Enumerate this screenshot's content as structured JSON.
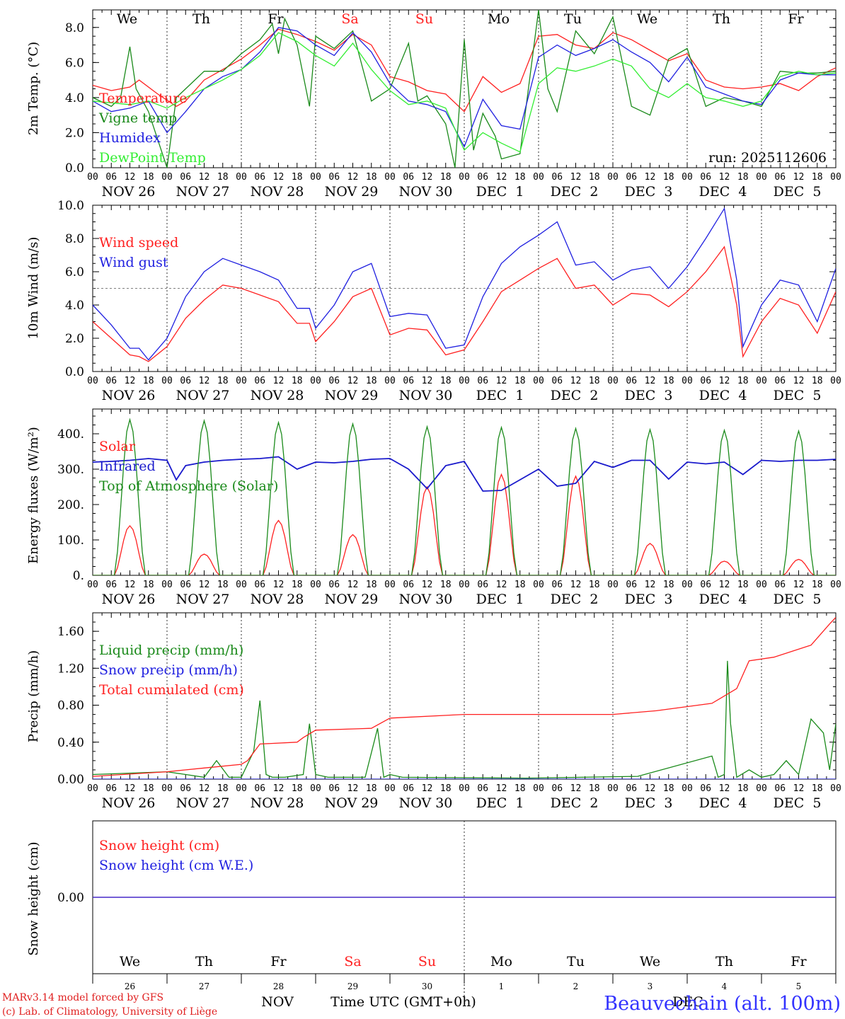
{
  "colors": {
    "red": "#ff2020",
    "green": "#1a8a1a",
    "blue": "#2020e0",
    "lightgreen": "#33ee33",
    "navy": "#1a1acc",
    "axis": "#000000"
  },
  "days": {
    "weekdays": [
      "We",
      "Th",
      "Fr",
      "Sa",
      "Su",
      "Mo",
      "Tu",
      "We",
      "Th",
      "Fr"
    ],
    "weekday_colors": [
      "#000",
      "#000",
      "#000",
      "#ff2020",
      "#ff2020",
      "#000",
      "#000",
      "#000",
      "#000",
      "#000"
    ],
    "date_labels": [
      "NOV 26",
      "NOV 27",
      "NOV 28",
      "NOV 29",
      "NOV 30",
      "DEC  1",
      "DEC  2",
      "DEC  3",
      "DEC  4",
      "DEC  5"
    ],
    "day_numbers": [
      "26",
      "27",
      "28",
      "29",
      "30",
      "1",
      "2",
      "3",
      "4",
      "5"
    ],
    "hour_ticks": [
      "00",
      "06",
      "12",
      "18"
    ],
    "end_tick": "00"
  },
  "footer": {
    "model_line": "MARv3.14 model forced by GFS",
    "lab_line": "(c) Lab. of Climatology, University of Liège",
    "month_left": "NOV",
    "month_right": "DEC",
    "time_label": "Time UTC (GMT+0h)",
    "station": "Beauvechain (alt. 100m)"
  },
  "chart_data": [
    {
      "type": "line",
      "title": "2m Temp.",
      "ylabel": "2m Temp. (°C)",
      "ylim": [
        0,
        9
      ],
      "yticks": [
        "0.0",
        "2.0",
        "4.0",
        "6.0",
        "8.0"
      ],
      "annotation": "run: 2025112606",
      "xlabel": "",
      "series": [
        {
          "name": "Temperature",
          "color": "#ff2020",
          "x": [
            0,
            6,
            12,
            15,
            21,
            27,
            30,
            36,
            42,
            48,
            54,
            60,
            66,
            72,
            78,
            84,
            90,
            96,
            102,
            108,
            114,
            120,
            126,
            132,
            138,
            144,
            150,
            156,
            162,
            168,
            174,
            180,
            186,
            192,
            198,
            204,
            210,
            216,
            222,
            228,
            234,
            240
          ],
          "values": [
            4.7,
            4.4,
            4.6,
            5.0,
            4.2,
            3.5,
            3.8,
            5.0,
            5.6,
            6.2,
            7.0,
            7.9,
            7.6,
            7.2,
            6.7,
            7.6,
            7.0,
            5.2,
            4.9,
            4.4,
            4.2,
            3.2,
            5.2,
            4.3,
            4.8,
            7.5,
            7.6,
            7.0,
            6.8,
            7.7,
            7.3,
            6.7,
            6.1,
            6.5,
            5.0,
            4.6,
            4.5,
            4.6,
            4.8,
            4.4,
            5.2,
            5.7
          ]
        },
        {
          "name": "Vigne temp",
          "color": "#1a8a1a",
          "x": [
            0,
            6,
            9,
            12,
            14,
            18,
            24,
            27,
            30,
            36,
            42,
            48,
            54,
            58,
            60,
            62,
            66,
            70,
            72,
            78,
            84,
            90,
            96,
            102,
            105,
            108,
            114,
            117,
            120,
            123,
            126,
            130,
            132,
            138,
            144,
            147,
            150,
            156,
            162,
            168,
            174,
            180,
            186,
            192,
            198,
            204,
            210,
            216,
            222,
            228,
            234,
            240
          ],
          "values": [
            4.0,
            3.5,
            4.0,
            6.9,
            4.5,
            3.2,
            0.0,
            4.0,
            4.5,
            5.5,
            5.5,
            6.5,
            7.3,
            8.2,
            6.5,
            8.5,
            7.0,
            3.5,
            7.5,
            6.8,
            7.8,
            3.8,
            4.5,
            7.1,
            3.8,
            4.1,
            2.5,
            0.0,
            7.3,
            1.0,
            3.1,
            1.8,
            0.5,
            0.8,
            9.0,
            4.5,
            3.2,
            7.8,
            6.5,
            8.6,
            3.5,
            3.0,
            6.2,
            6.8,
            3.5,
            4.0,
            3.8,
            3.5,
            5.5,
            5.4,
            5.4,
            5.5
          ]
        },
        {
          "name": "Humidex",
          "color": "#2020e0",
          "x": [
            0,
            6,
            12,
            18,
            24,
            30,
            36,
            42,
            48,
            54,
            60,
            66,
            72,
            78,
            84,
            90,
            96,
            102,
            108,
            114,
            120,
            126,
            132,
            138,
            144,
            150,
            156,
            162,
            168,
            174,
            180,
            186,
            192,
            198,
            204,
            210,
            216,
            222,
            228,
            234,
            240
          ],
          "values": [
            3.8,
            3.2,
            3.4,
            3.8,
            2.0,
            3.2,
            4.5,
            5.2,
            5.6,
            6.6,
            8.0,
            7.8,
            7.0,
            6.4,
            7.7,
            6.6,
            4.8,
            3.8,
            3.6,
            3.2,
            1.2,
            3.9,
            2.4,
            2.2,
            6.3,
            7.0,
            6.4,
            6.8,
            7.3,
            6.6,
            6.0,
            4.9,
            6.3,
            4.6,
            4.2,
            3.8,
            3.6,
            5.0,
            5.4,
            5.3,
            5.3
          ]
        },
        {
          "name": "DewPoint Temp",
          "color": "#33ee33",
          "x": [
            0,
            6,
            12,
            18,
            24,
            30,
            36,
            42,
            48,
            54,
            60,
            66,
            72,
            78,
            84,
            90,
            96,
            102,
            108,
            114,
            120,
            126,
            132,
            138,
            144,
            150,
            156,
            162,
            168,
            174,
            180,
            186,
            192,
            198,
            204,
            210,
            216,
            222,
            228,
            234,
            240
          ],
          "values": [
            3.8,
            3.7,
            3.6,
            3.8,
            3.4,
            4.0,
            4.5,
            5.0,
            5.6,
            6.4,
            7.7,
            7.2,
            6.4,
            5.8,
            7.1,
            5.6,
            4.4,
            3.6,
            3.8,
            3.4,
            1.0,
            2.0,
            1.4,
            0.9,
            4.8,
            5.7,
            5.5,
            5.8,
            6.2,
            5.8,
            4.5,
            4.0,
            4.8,
            4.0,
            3.8,
            3.5,
            3.8,
            5.2,
            5.5,
            5.3,
            5.4
          ]
        }
      ]
    },
    {
      "type": "line",
      "title": "10m Wind",
      "ylabel": "10m Wind (m/s)",
      "ylim": [
        0,
        10
      ],
      "yticks": [
        "0.0",
        "2.0",
        "4.0",
        "6.0",
        "8.0",
        "10.0"
      ],
      "reference_line": 5.0,
      "series": [
        {
          "name": "Wind speed",
          "color": "#ff2020",
          "x": [
            0,
            6,
            12,
            15,
            18,
            24,
            30,
            36,
            42,
            48,
            54,
            60,
            66,
            70,
            72,
            78,
            84,
            90,
            96,
            102,
            108,
            114,
            120,
            126,
            132,
            138,
            144,
            150,
            156,
            162,
            168,
            174,
            180,
            186,
            192,
            198,
            204,
            208,
            210,
            216,
            222,
            228,
            234,
            240
          ],
          "values": [
            3.0,
            2.0,
            1.0,
            0.9,
            0.6,
            1.5,
            3.2,
            4.3,
            5.2,
            5.0,
            4.6,
            4.2,
            2.9,
            2.9,
            1.8,
            3.0,
            4.5,
            5.0,
            2.2,
            2.6,
            2.5,
            1.0,
            1.3,
            3.0,
            4.8,
            5.5,
            6.2,
            6.8,
            5.0,
            5.2,
            4.0,
            4.7,
            4.6,
            3.9,
            4.8,
            6.0,
            7.5,
            4.0,
            0.9,
            3.0,
            4.4,
            4.0,
            2.3,
            4.8
          ]
        },
        {
          "name": "Wind gust",
          "color": "#2020e0",
          "x": [
            0,
            6,
            12,
            15,
            18,
            24,
            30,
            36,
            42,
            48,
            54,
            60,
            66,
            70,
            72,
            78,
            84,
            90,
            96,
            102,
            108,
            114,
            120,
            126,
            132,
            138,
            144,
            150,
            156,
            162,
            168,
            174,
            180,
            186,
            192,
            198,
            204,
            208,
            210,
            216,
            222,
            228,
            234,
            240
          ],
          "values": [
            4.0,
            2.8,
            1.4,
            1.4,
            0.7,
            2.0,
            4.5,
            6.0,
            6.8,
            6.4,
            6.0,
            5.5,
            3.8,
            3.8,
            2.6,
            4.0,
            6.0,
            6.5,
            3.3,
            3.5,
            3.4,
            1.4,
            1.6,
            4.5,
            6.5,
            7.5,
            8.2,
            9.0,
            6.4,
            6.6,
            5.5,
            6.1,
            6.3,
            5.0,
            6.3,
            8.0,
            9.8,
            5.5,
            1.5,
            4.0,
            5.5,
            5.2,
            3.0,
            6.2
          ]
        }
      ]
    },
    {
      "type": "line",
      "title": "Energy fluxes",
      "ylabel": "Energy fluxes (W/m²)",
      "ylim": [
        0,
        450
      ],
      "yticks": [
        "0.",
        "100.",
        "200.",
        "300.",
        "400."
      ],
      "series": [
        {
          "name": "Solar",
          "color": "#ff2020",
          "peaks": [
            140,
            60,
            155,
            115,
            250,
            285,
            280,
            90,
            40,
            45
          ]
        },
        {
          "name": "Infrared",
          "color": "#1a1acc",
          "x": [
            0,
            6,
            12,
            18,
            24,
            27,
            30,
            36,
            42,
            48,
            54,
            60,
            66,
            72,
            78,
            84,
            90,
            96,
            102,
            108,
            114,
            120,
            126,
            132,
            138,
            144,
            150,
            156,
            162,
            168,
            174,
            180,
            186,
            192,
            198,
            204,
            210,
            216,
            222,
            228,
            234,
            240
          ],
          "values": [
            320,
            322,
            325,
            330,
            325,
            270,
            310,
            320,
            325,
            328,
            330,
            335,
            300,
            320,
            318,
            322,
            328,
            330,
            300,
            245,
            310,
            322,
            238,
            240,
            270,
            300,
            252,
            260,
            322,
            305,
            325,
            325,
            272,
            320,
            315,
            320,
            285,
            325,
            322,
            325,
            325,
            328
          ]
        },
        {
          "name": "Top of Atmosphere (Solar)",
          "color": "#1a8a1a",
          "peaks": [
            440,
            437,
            432,
            428,
            420,
            418,
            415,
            412,
            410,
            408
          ]
        }
      ]
    },
    {
      "type": "line",
      "title": "Precip",
      "ylabel": "Precip (mm/h)",
      "ylim": [
        0,
        1.8
      ],
      "yticks": [
        "0.00",
        "0.40",
        "0.80",
        "1.20",
        "1.60"
      ],
      "series": [
        {
          "name": "Liquid precip (mm/h)",
          "color": "#1a8a1a",
          "x": [
            0,
            24,
            36,
            40,
            44,
            48,
            52,
            54,
            56,
            58,
            62,
            68,
            70,
            72,
            76,
            80,
            88,
            92,
            94,
            96,
            100,
            140,
            176,
            200,
            202,
            204,
            205,
            206,
            208,
            212,
            216,
            220,
            224,
            228,
            232,
            236,
            238,
            240
          ],
          "values": [
            0.05,
            0.08,
            0.02,
            0.2,
            0.02,
            0.02,
            0.3,
            0.85,
            0.05,
            0.02,
            0.02,
            0.05,
            0.6,
            0.05,
            0.02,
            0.02,
            0.02,
            0.55,
            0.02,
            0.05,
            0.02,
            0.01,
            0.03,
            0.25,
            0.02,
            0.05,
            1.28,
            0.6,
            0.02,
            0.1,
            0.02,
            0.05,
            0.2,
            0.05,
            0.65,
            0.5,
            0.1,
            0.6
          ]
        },
        {
          "name": "Snow precip (mm/h)",
          "color": "#2020e0",
          "x": [
            0,
            240
          ],
          "values": [
            0,
            0
          ]
        },
        {
          "name": "Total cumulated (cm)",
          "color": "#ff2020",
          "x": [
            0,
            24,
            36,
            48,
            50,
            54,
            66,
            68,
            72,
            90,
            96,
            120,
            168,
            182,
            200,
            208,
            212,
            220,
            232,
            238,
            240
          ],
          "values": [
            0.03,
            0.08,
            0.12,
            0.16,
            0.2,
            0.38,
            0.4,
            0.45,
            0.53,
            0.55,
            0.66,
            0.7,
            0.7,
            0.74,
            0.82,
            0.98,
            1.28,
            1.32,
            1.45,
            1.68,
            1.75
          ]
        }
      ]
    },
    {
      "type": "line",
      "title": "Snow height",
      "ylabel": "Snow height (cm)",
      "ylim": [
        -1,
        1
      ],
      "yticks": [
        "0.00"
      ],
      "series": [
        {
          "name": "Snow height (cm)",
          "color": "#ff2020",
          "x": [
            0,
            240
          ],
          "values": [
            0,
            0
          ]
        },
        {
          "name": "Snow height (cm W.E.)",
          "color": "#2020e0",
          "x": [
            0,
            240
          ],
          "values": [
            0,
            0
          ]
        }
      ]
    }
  ]
}
